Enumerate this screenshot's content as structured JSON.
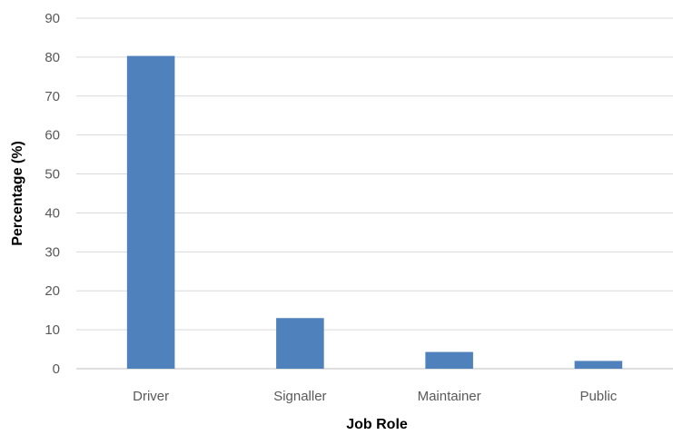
{
  "chart_data": {
    "type": "bar",
    "title": "",
    "xlabel": "Job Role",
    "ylabel": "Percentage (%)",
    "categories": [
      "Driver",
      "Signaller",
      "Maintainer",
      "Public"
    ],
    "values": [
      80.3,
      13,
      4.3,
      2
    ],
    "ylim": [
      0,
      90
    ],
    "yticks": [
      0,
      10,
      20,
      30,
      40,
      50,
      60,
      70,
      80,
      90
    ],
    "grid": true,
    "legend": "none",
    "colors": {
      "bar": "#4f81bd",
      "grid": "#d9d9d9",
      "axis": "#bfbfbf"
    }
  }
}
